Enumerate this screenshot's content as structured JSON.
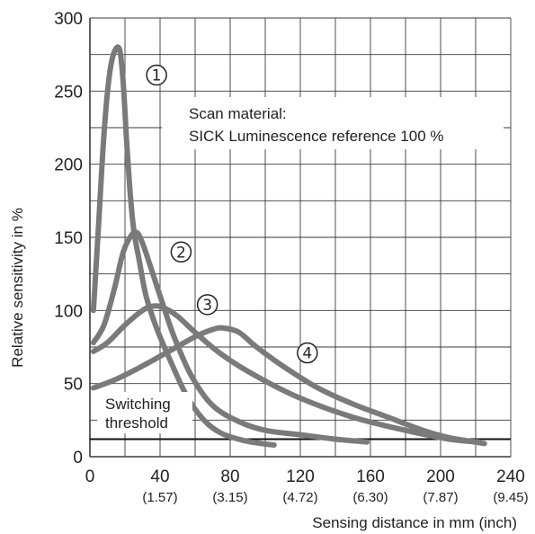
{
  "chart_data": {
    "type": "line",
    "xlabel": "Sensing distance in mm (inch)",
    "ylabel": "Relative sensitivity in %",
    "xlim": [
      0,
      240
    ],
    "ylim": [
      0,
      300
    ],
    "grid": true,
    "x_ticks": [
      {
        "value": 0,
        "label": "0",
        "sub": ""
      },
      {
        "value": 40,
        "label": "40",
        "sub": "(1.57)"
      },
      {
        "value": 80,
        "label": "80",
        "sub": "(3.15)"
      },
      {
        "value": 120,
        "label": "120",
        "sub": "(4.72)"
      },
      {
        "value": 160,
        "label": "160",
        "sub": "(6.30)"
      },
      {
        "value": 200,
        "label": "200",
        "sub": "(7.87)"
      },
      {
        "value": 240,
        "label": "240",
        "sub": "(9.45)"
      }
    ],
    "y_ticks": [
      0,
      50,
      100,
      150,
      200,
      250,
      300
    ],
    "annotation": {
      "line1": "Scan material:",
      "line2": "SICK Luminescence reference 100 %"
    },
    "threshold": {
      "value": 12,
      "label_line1": "Switching",
      "label_line2": "threshold"
    },
    "series": [
      {
        "marker": "1",
        "color": "#7a7a7a",
        "points": [
          [
            2,
            100
          ],
          [
            5,
            160
          ],
          [
            8,
            220
          ],
          [
            11,
            260
          ],
          [
            14,
            277
          ],
          [
            17,
            278
          ],
          [
            19,
            255
          ],
          [
            21,
            215
          ],
          [
            23,
            180
          ],
          [
            25,
            155
          ],
          [
            28,
            135
          ],
          [
            32,
            110
          ],
          [
            38,
            88
          ],
          [
            45,
            68
          ],
          [
            55,
            42
          ],
          [
            65,
            25
          ],
          [
            75,
            16
          ],
          [
            88,
            11
          ],
          [
            98,
            9
          ],
          [
            105,
            8
          ]
        ],
        "marker_pos": [
          38,
          261
        ]
      },
      {
        "marker": "2",
        "color": "#7a7a7a",
        "points": [
          [
            2,
            78
          ],
          [
            8,
            90
          ],
          [
            14,
            115
          ],
          [
            19,
            140
          ],
          [
            24,
            152
          ],
          [
            27,
            153
          ],
          [
            30,
            146
          ],
          [
            34,
            132
          ],
          [
            40,
            110
          ],
          [
            48,
            82
          ],
          [
            58,
            55
          ],
          [
            70,
            35
          ],
          [
            85,
            24
          ],
          [
            100,
            18
          ],
          [
            120,
            15
          ],
          [
            140,
            12
          ],
          [
            158,
            10
          ]
        ],
        "marker_pos": [
          52,
          140
        ]
      },
      {
        "marker": "3",
        "color": "#7a7a7a",
        "points": [
          [
            2,
            72
          ],
          [
            10,
            78
          ],
          [
            20,
            90
          ],
          [
            30,
            100
          ],
          [
            36,
            103
          ],
          [
            42,
            102
          ],
          [
            50,
            96
          ],
          [
            60,
            85
          ],
          [
            75,
            70
          ],
          [
            95,
            55
          ],
          [
            120,
            40
          ],
          [
            150,
            27
          ],
          [
            180,
            18
          ],
          [
            205,
            12
          ],
          [
            222,
            10
          ]
        ],
        "marker_pos": [
          67,
          104
        ]
      },
      {
        "marker": "4",
        "color": "#7a7a7a",
        "points": [
          [
            2,
            47
          ],
          [
            15,
            53
          ],
          [
            30,
            62
          ],
          [
            45,
            72
          ],
          [
            60,
            82
          ],
          [
            70,
            87
          ],
          [
            76,
            88
          ],
          [
            85,
            85
          ],
          [
            95,
            75
          ],
          [
            110,
            62
          ],
          [
            130,
            47
          ],
          [
            150,
            36
          ],
          [
            170,
            27
          ],
          [
            190,
            18
          ],
          [
            205,
            13
          ],
          [
            225,
            9
          ]
        ],
        "marker_pos": [
          124,
          71
        ]
      }
    ]
  }
}
